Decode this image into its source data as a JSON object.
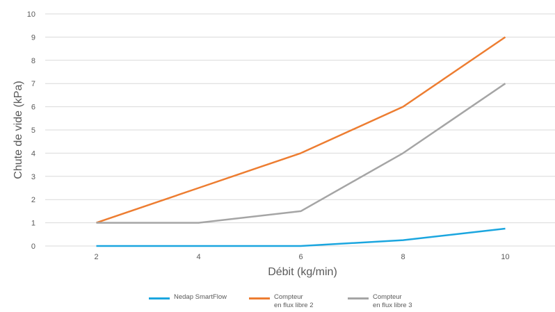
{
  "chart_data": {
    "type": "line",
    "title": "",
    "xlabel": "Débit (kg/min)",
    "ylabel": "Chute de vide (kPa)",
    "x": [
      2,
      4,
      6,
      8,
      10
    ],
    "ylim": [
      0,
      10
    ],
    "yticks": [
      0,
      1,
      2,
      3,
      4,
      5,
      6,
      7,
      8,
      9,
      10
    ],
    "grid": true,
    "legend_position": "bottom",
    "series": [
      {
        "name": "Nedap SmartFlow",
        "color": "#1BA6DF",
        "values": [
          0,
          0,
          0,
          0.25,
          0.75
        ]
      },
      {
        "name": "Compteur\nen flux libre 2",
        "color": "#ED7D31",
        "values": [
          1,
          2.5,
          4,
          6,
          9
        ]
      },
      {
        "name": "Compteur\nen flux libre 3",
        "color": "#A5A5A5",
        "values": [
          1,
          1,
          1.5,
          4,
          7
        ]
      }
    ]
  }
}
